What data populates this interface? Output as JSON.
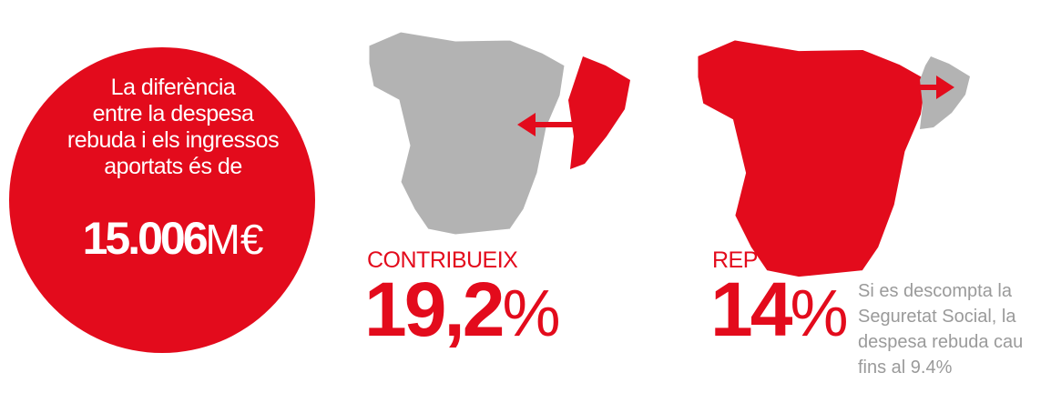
{
  "summary": {
    "lines": [
      "La diferència",
      "entre la despesa",
      "rebuda i els ingressos",
      "aportats és de"
    ],
    "amount": "15.006",
    "unit": "M€"
  },
  "contributes": {
    "label": "CONTRIBUEIX",
    "value": "19,2",
    "unit": "%"
  },
  "receives": {
    "label": "REP",
    "value": "14",
    "unit": "%"
  },
  "note": {
    "lines": [
      "Si es descompta la",
      "Seguretat Social, la",
      "despesa rebuda cau",
      "fins al 9.4%"
    ]
  }
}
